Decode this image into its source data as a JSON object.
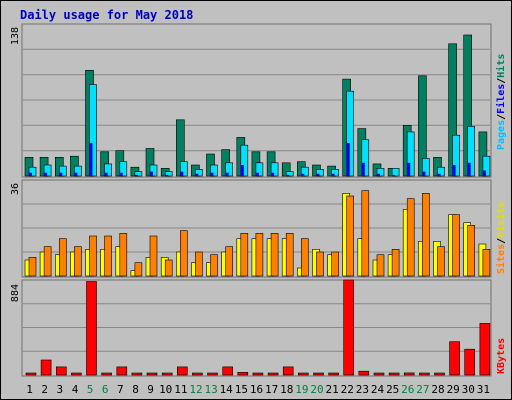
{
  "chart_data": [
    {
      "type": "bar",
      "title": "Daily usage for May 2018",
      "categories": [
        "1",
        "2",
        "3",
        "4",
        "5",
        "6",
        "7",
        "8",
        "9",
        "10",
        "11",
        "12",
        "13",
        "14",
        "15",
        "16",
        "17",
        "18",
        "19",
        "20",
        "21",
        "22",
        "23",
        "24",
        "25",
        "26",
        "27",
        "28",
        "29",
        "30",
        "31"
      ],
      "weekend_days": [
        "5",
        "6",
        "12",
        "13",
        "19",
        "20",
        "26",
        "27"
      ],
      "ymax_label": "138",
      "ylim": [
        0,
        138
      ],
      "series": [
        {
          "name": "Hits",
          "color": "#008060",
          "values": [
            17,
            17,
            17,
            18,
            96,
            22,
            23,
            8,
            25,
            7,
            51,
            10,
            20,
            24,
            35,
            22,
            22,
            12,
            13,
            10,
            9,
            88,
            43,
            11,
            7,
            46,
            91,
            17,
            120,
            128,
            40
          ]
        },
        {
          "name": "Files",
          "color": "#00e0ff",
          "values": [
            8,
            10,
            9,
            9,
            83,
            11,
            13,
            4,
            10,
            4,
            13,
            6,
            10,
            12,
            28,
            12,
            12,
            4,
            8,
            6,
            6,
            77,
            33,
            7,
            7,
            40,
            16,
            8,
            37,
            45,
            18
          ]
        },
        {
          "name": "Pages",
          "color": "#0000ff",
          "values": [
            3,
            3,
            3,
            3,
            30,
            3,
            3,
            1,
            4,
            1,
            4,
            2,
            3,
            3,
            10,
            3,
            3,
            1,
            2,
            2,
            2,
            30,
            12,
            2,
            1,
            12,
            4,
            2,
            10,
            12,
            5
          ]
        }
      ],
      "legend": [
        "Pages",
        "Files",
        "Hits"
      ]
    },
    {
      "type": "bar",
      "ymax_label": "36",
      "ylim": [
        0,
        36
      ],
      "series": [
        {
          "name": "Visits",
          "color": "#ffff00",
          "values": [
            6,
            9,
            8,
            9,
            10,
            10,
            11,
            2,
            7,
            7,
            9,
            5,
            5,
            9,
            14,
            14,
            14,
            14,
            3,
            10,
            8,
            31,
            14,
            6,
            8,
            25,
            13,
            13,
            23,
            20,
            12
          ]
        },
        {
          "name": "Sites",
          "color": "#ff8000",
          "values": [
            7,
            11,
            14,
            11,
            15,
            15,
            16,
            5,
            15,
            6,
            17,
            9,
            8,
            11,
            16,
            16,
            16,
            16,
            14,
            9,
            9,
            30,
            32,
            8,
            10,
            29,
            31,
            11,
            23,
            19,
            10
          ]
        }
      ],
      "legend": [
        "Sites",
        "Visits"
      ]
    },
    {
      "type": "bar",
      "ymax_label": "884",
      "ylim": [
        0,
        884
      ],
      "series": [
        {
          "name": "KBytes",
          "color": "#ff0000",
          "values": [
            2,
            140,
            75,
            2,
            870,
            2,
            75,
            10,
            15,
            15,
            75,
            2,
            2,
            75,
            25,
            10,
            15,
            75,
            2,
            2,
            2,
            884,
            35,
            2,
            2,
            20,
            15,
            2,
            310,
            240,
            480
          ]
        }
      ],
      "legend": [
        "KBytes"
      ]
    }
  ]
}
